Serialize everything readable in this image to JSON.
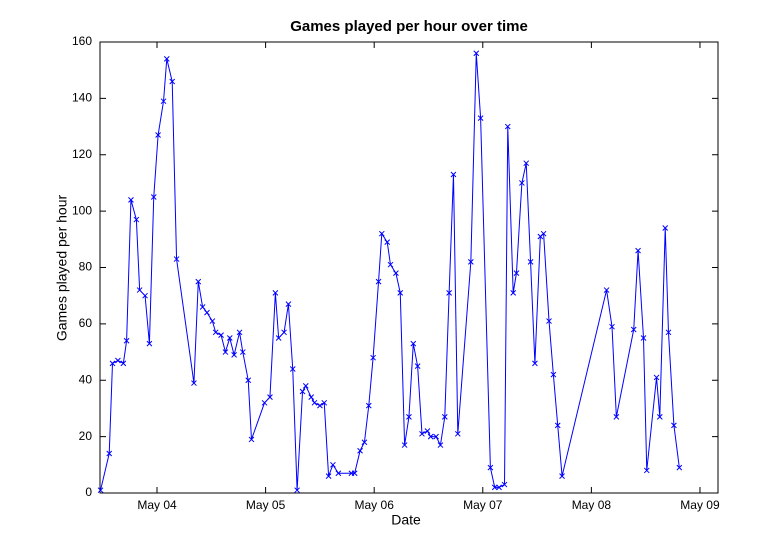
{
  "chart_data": {
    "type": "line",
    "title": "Games played per hour over time",
    "x_label": "Date",
    "y_label": "Games played per hour",
    "x": [
      3.48,
      3.56,
      3.59,
      3.64,
      3.69,
      3.72,
      3.76,
      3.81,
      3.84,
      3.89,
      3.93,
      3.97,
      4.01,
      4.06,
      4.09,
      4.14,
      4.18,
      4.34,
      4.38,
      4.42,
      4.46,
      4.51,
      4.54,
      4.59,
      4.63,
      4.67,
      4.71,
      4.76,
      4.79,
      4.84,
      4.87,
      4.99,
      5.04,
      5.09,
      5.12,
      5.17,
      5.21,
      5.25,
      5.29,
      5.34,
      5.37,
      5.42,
      5.45,
      5.5,
      5.54,
      5.58,
      5.62,
      5.67,
      5.79,
      5.82,
      5.87,
      5.91,
      5.95,
      5.99,
      6.04,
      6.07,
      6.12,
      6.15,
      6.2,
      6.24,
      6.28,
      6.32,
      6.36,
      6.4,
      6.44,
      6.49,
      6.52,
      6.57,
      6.61,
      6.65,
      6.69,
      6.73,
      6.77,
      6.89,
      6.94,
      6.98,
      7.07,
      7.11,
      7.15,
      7.2,
      7.23,
      7.28,
      7.31,
      7.36,
      7.4,
      7.44,
      7.48,
      7.53,
      7.56,
      7.61,
      7.65,
      7.69,
      7.73,
      8.14,
      8.19,
      8.23,
      8.39,
      8.43,
      8.48,
      8.51,
      8.6,
      8.63,
      8.68,
      8.71,
      8.76,
      8.81
    ],
    "values": [
      1,
      14,
      46,
      47,
      46,
      54,
      104,
      97,
      72,
      70,
      53,
      105,
      127,
      139,
      154,
      146,
      83,
      39,
      75,
      66,
      64,
      61,
      57,
      56,
      50,
      55,
      49,
      57,
      50,
      40,
      19,
      32,
      34,
      71,
      55,
      57,
      67,
      44,
      1,
      36,
      38,
      34,
      32,
      31,
      32,
      6,
      10,
      7,
      7,
      7,
      15,
      18,
      31,
      48,
      75,
      92,
      89,
      81,
      78,
      71,
      17,
      27,
      53,
      45,
      21,
      22,
      20,
      20,
      17,
      27,
      71,
      113,
      21,
      82,
      156,
      133,
      9,
      2,
      2,
      3,
      130,
      71,
      78,
      110,
      117,
      82,
      46,
      91,
      92,
      61,
      42,
      24,
      6,
      72,
      59,
      27,
      58,
      86,
      55,
      8,
      41,
      27,
      94,
      57,
      24,
      9
    ],
    "color": "#0000ff",
    "xlim": [
      3.475,
      9.166
    ],
    "xticks": [
      {
        "value": 4,
        "label": "May 04"
      },
      {
        "value": 5,
        "label": "May 05"
      },
      {
        "value": 6,
        "label": "May 06"
      },
      {
        "value": 7,
        "label": "May 07"
      },
      {
        "value": 8,
        "label": "May 08"
      },
      {
        "value": 9,
        "label": "May 09"
      }
    ],
    "ylim": [
      0,
      160
    ],
    "yticks": [
      0,
      20,
      40,
      60,
      80,
      100,
      120,
      140,
      160
    ],
    "grid": false
  }
}
